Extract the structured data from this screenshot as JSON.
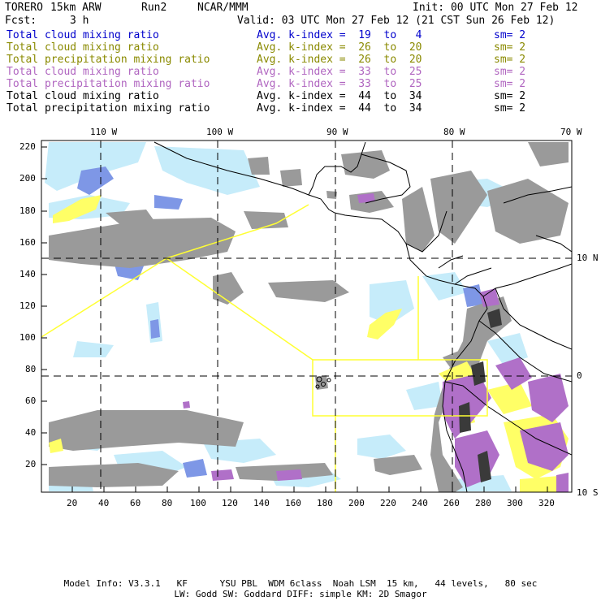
{
  "header": {
    "model": "TORERO",
    "resolution": "15km ARW",
    "run": "Run2",
    "org": "NCAR/MMM",
    "init": "Init: 00 UTC Mon 27 Feb 12",
    "fcst_label": "Fcst:",
    "fcst_value": "3 h",
    "valid": "Valid: 03 UTC Mon 27 Feb 12 (21 CST Sun 26 Feb 12)"
  },
  "legend": [
    {
      "name": "Total cloud mixing ratio",
      "range": "Avg. k-index =  19  to   4",
      "sm": "sm= 2",
      "color": "#0000cc"
    },
    {
      "name": "Total cloud mixing ratio",
      "range": "Avg. k-index =  26  to  20",
      "sm": "sm= 2",
      "color": "#8a8a00"
    },
    {
      "name": "Total precipitation mixing ratio",
      "range": "Avg. k-index =  26  to  20",
      "sm": "sm= 2",
      "color": "#8a8a00"
    },
    {
      "name": "Total cloud mixing ratio",
      "range": "Avg. k-index =  33  to  25",
      "sm": "sm= 2",
      "color": "#b065c0"
    },
    {
      "name": "Total precipitation mixing ratio",
      "range": "Avg. k-index =  33  to  25",
      "sm": "sm= 2",
      "color": "#b065c0"
    },
    {
      "name": "Total cloud mixing ratio",
      "range": "Avg. k-index =  44  to  34",
      "sm": "sm= 2",
      "color": "#000000"
    },
    {
      "name": "Total precipitation mixing ratio",
      "range": "Avg. k-index =  44  to  34",
      "sm": "sm= 2",
      "color": "#000000"
    }
  ],
  "axes": {
    "top_lon": [
      "110 W",
      "100 W",
      "90 W",
      "80 W",
      "70 W"
    ],
    "right_lat": [
      "10 N",
      "0",
      "10 S"
    ],
    "left_y": [
      "220",
      "200",
      "180",
      "160",
      "140",
      "120",
      "100",
      "80",
      "60",
      "40",
      "20"
    ],
    "bottom_x": [
      "20",
      "40",
      "60",
      "80",
      "100",
      "120",
      "140",
      "160",
      "180",
      "200",
      "220",
      "240",
      "260",
      "280",
      "300",
      "320"
    ]
  },
  "footer": {
    "line1": "Model Info: V3.3.1   KF      YSU PBL  WDM 6class  Noah LSM  15 km,   44 levels,   80 sec",
    "line2": "LW: Godd SW: Goddard DIFF: simple KM: 2D Smagor"
  },
  "colors": {
    "cloud_light": "#c6ecfa",
    "cloud_blue": "#7e97e6",
    "cloud_grey": "#9a9a9a",
    "cloud_yellow": "#ffff66",
    "cloud_purple": "#b070c8",
    "domain_box": "#ffff33"
  }
}
